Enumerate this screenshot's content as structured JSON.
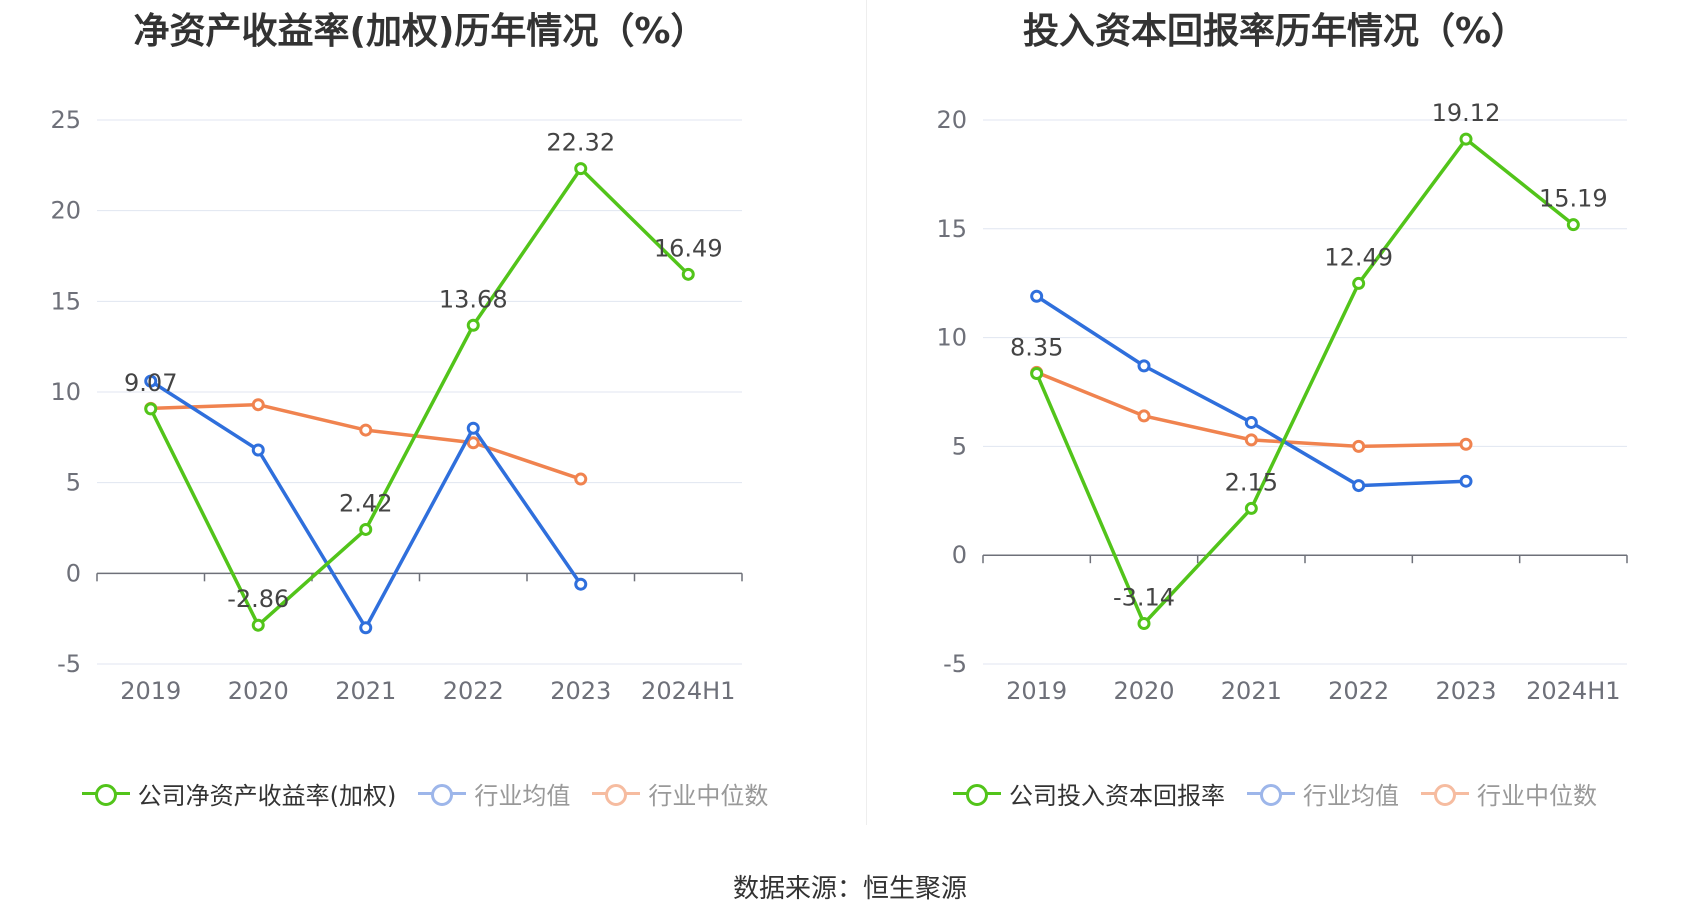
{
  "source_text": "数据来源：恒生聚源",
  "colors": {
    "company": "#52c41a",
    "avg": "#2f6fdc",
    "median": "#f0834f",
    "grid": "#e0e6f1",
    "axis": "#6e7079",
    "label": "#444444"
  },
  "charts": [
    {
      "title": "净资产收益率(加权)历年情况（%）",
      "legend": [
        "公司净资产收益率(加权)",
        "行业均值",
        "行业中位数"
      ],
      "y_ticks": [
        "25",
        "20",
        "15",
        "10",
        "5",
        "0",
        "-5"
      ],
      "x_ticks": [
        "2019",
        "2020",
        "2021",
        "2022",
        "2023",
        "2024H1"
      ],
      "data_labels": [
        "9.07",
        "-2.86",
        "2.42",
        "13.68",
        "22.32",
        "16.49"
      ]
    },
    {
      "title": "投入资本回报率历年情况（%）",
      "legend": [
        "公司投入资本回报率",
        "行业均值",
        "行业中位数"
      ],
      "y_ticks": [
        "20",
        "15",
        "10",
        "5",
        "0",
        "-5"
      ],
      "x_ticks": [
        "2019",
        "2020",
        "2021",
        "2022",
        "2023",
        "2024H1"
      ],
      "data_labels": [
        "8.35",
        "-3.14",
        "2.15",
        "12.49",
        "19.12",
        "15.19"
      ]
    }
  ],
  "chart_data": [
    {
      "type": "line",
      "title": "净资产收益率(加权)历年情况（%）",
      "categories": [
        "2019",
        "2020",
        "2021",
        "2022",
        "2023",
        "2024H1"
      ],
      "ylim": [
        -5,
        25
      ],
      "grid": true,
      "legend_position": "bottom",
      "series": [
        {
          "name": "公司净资产收益率(加权)",
          "values": [
            9.07,
            -2.86,
            2.42,
            13.68,
            22.32,
            16.49
          ]
        },
        {
          "name": "行业均值",
          "values": [
            10.6,
            6.8,
            -3.0,
            8.0,
            -0.6,
            null
          ]
        },
        {
          "name": "行业中位数",
          "values": [
            9.1,
            9.3,
            7.9,
            7.2,
            5.2,
            null
          ]
        }
      ]
    },
    {
      "type": "line",
      "title": "投入资本回报率历年情况（%）",
      "categories": [
        "2019",
        "2020",
        "2021",
        "2022",
        "2023",
        "2024H1"
      ],
      "ylim": [
        -5,
        20
      ],
      "grid": true,
      "legend_position": "bottom",
      "series": [
        {
          "name": "公司投入资本回报率",
          "values": [
            8.35,
            -3.14,
            2.15,
            12.49,
            19.12,
            15.19
          ]
        },
        {
          "name": "行业均值",
          "values": [
            11.9,
            8.7,
            6.1,
            3.2,
            3.4,
            null
          ]
        },
        {
          "name": "行业中位数",
          "values": [
            8.4,
            6.4,
            5.3,
            5.0,
            5.1,
            null
          ]
        }
      ]
    }
  ]
}
